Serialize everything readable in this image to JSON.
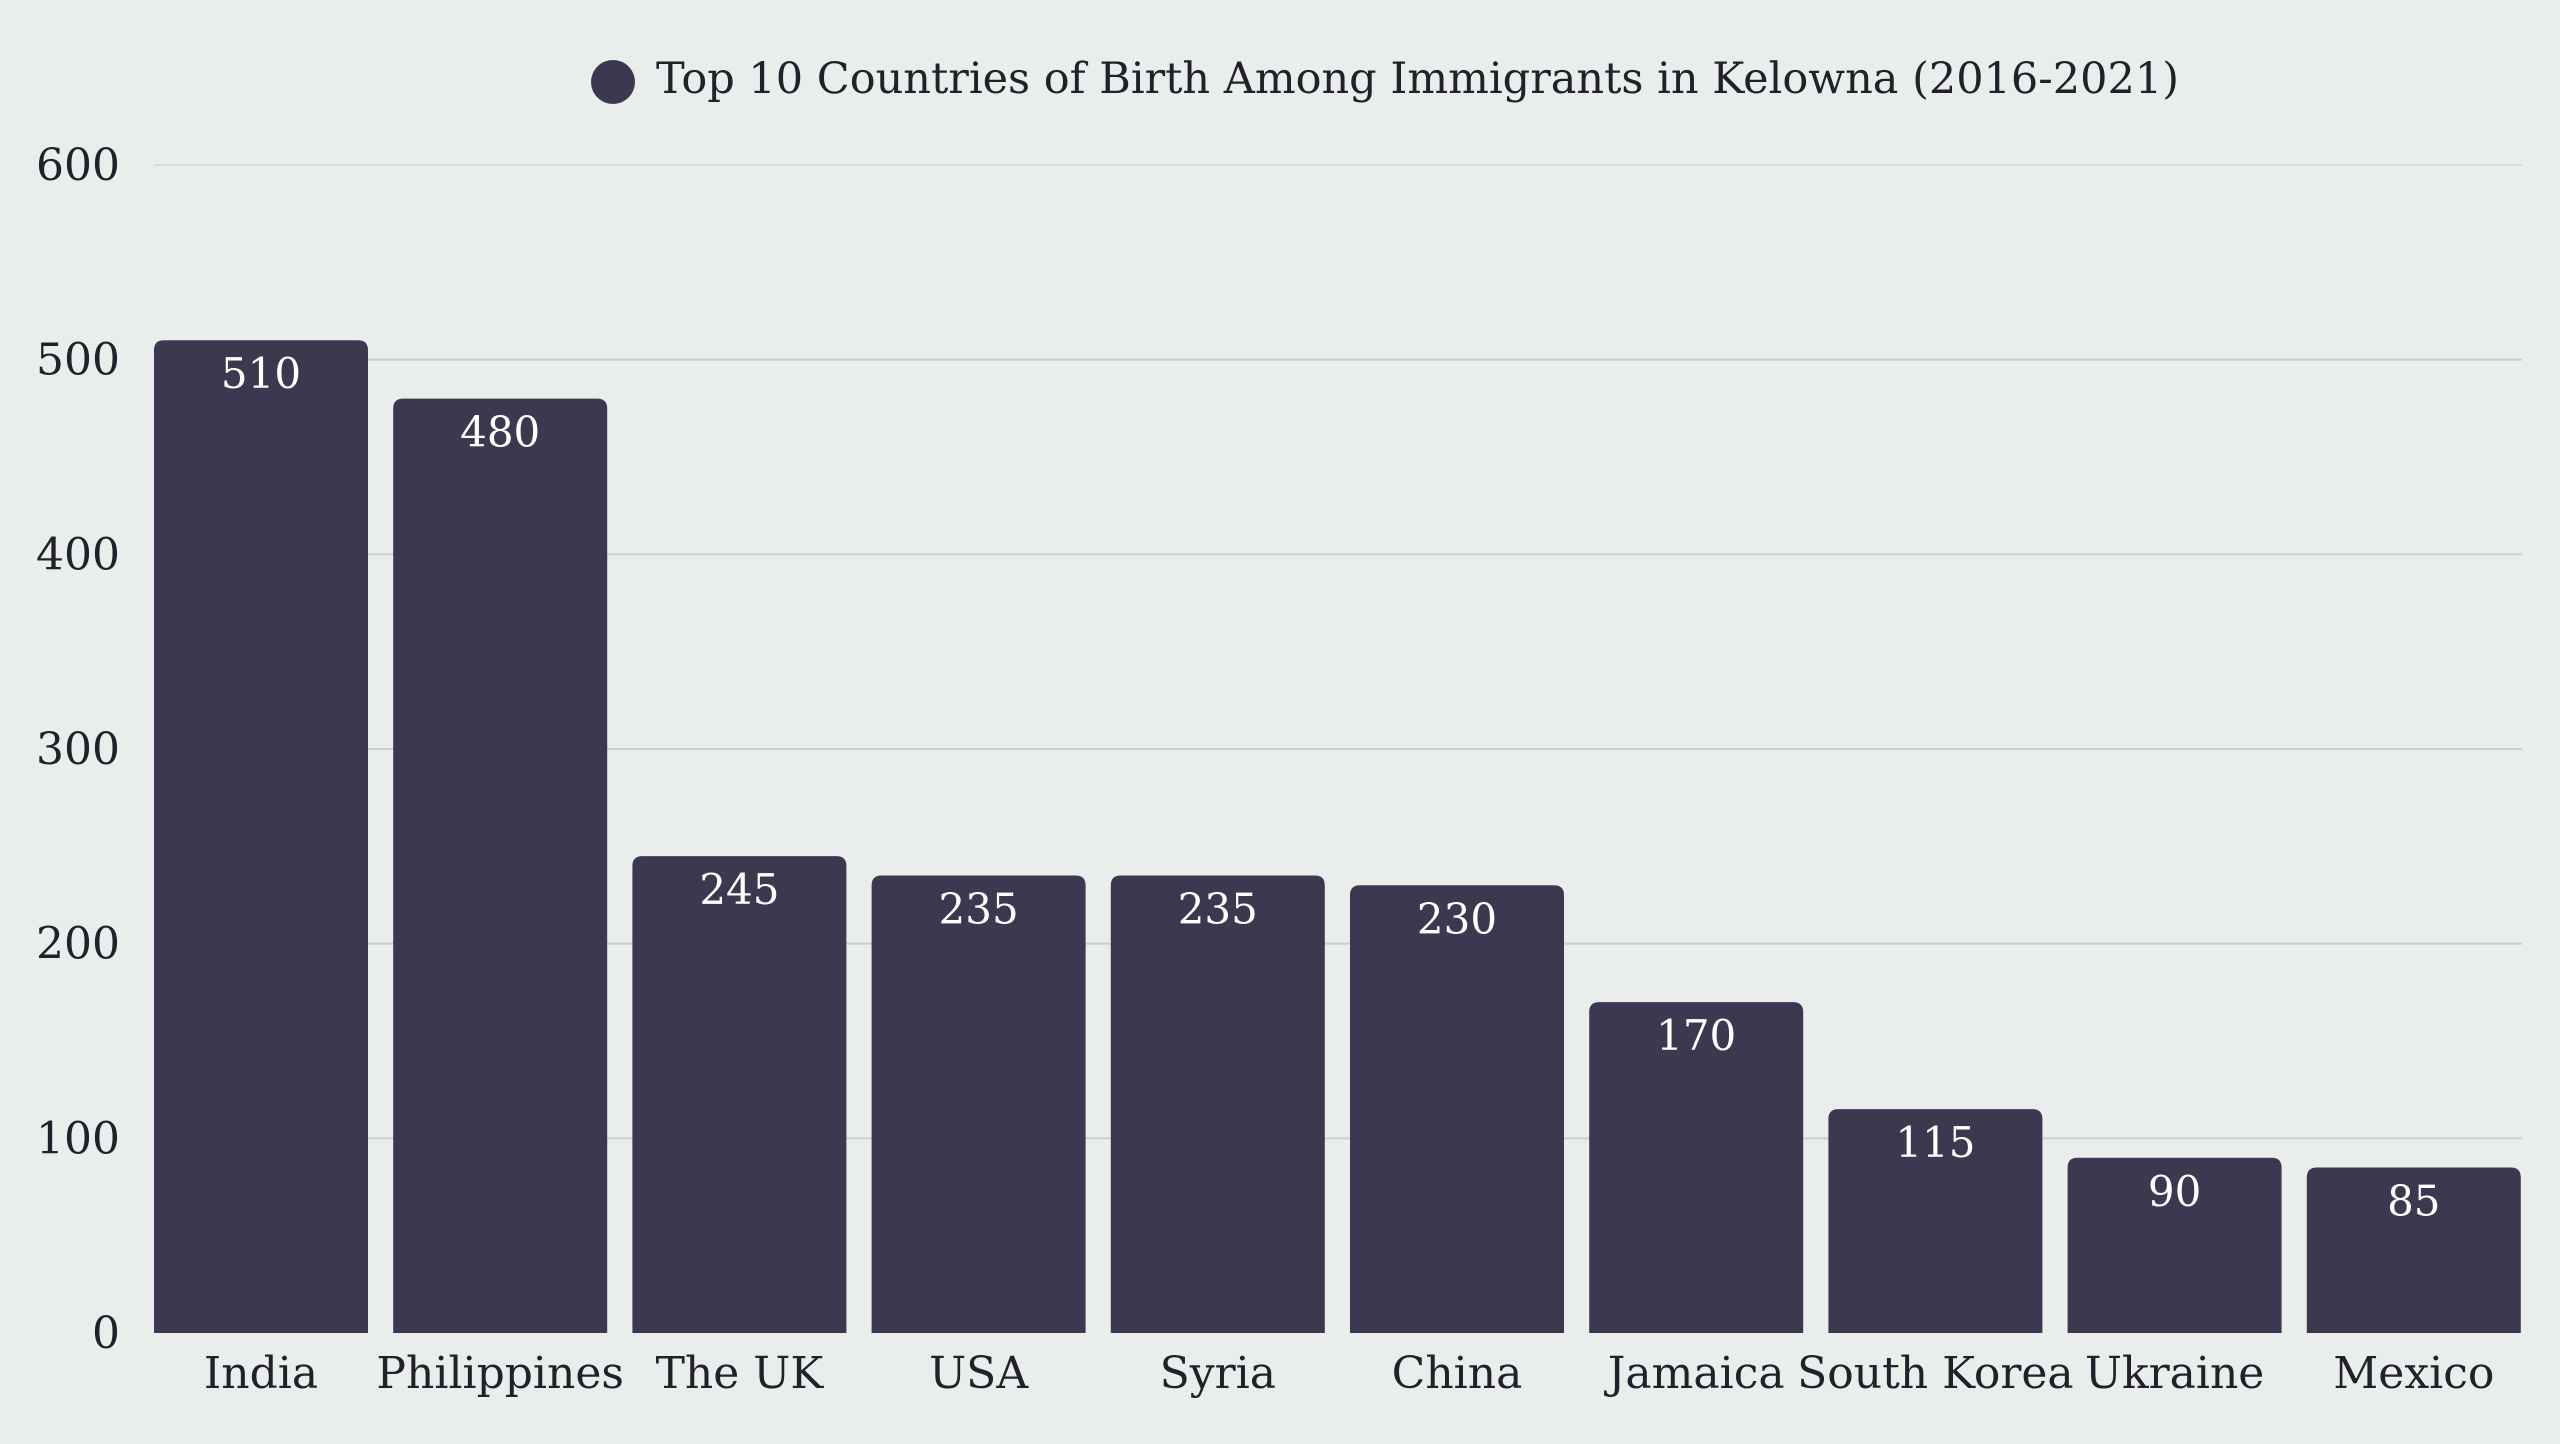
{
  "colors": {
    "background": "#e9eeec",
    "bar": "#3d3850",
    "grid": "#c9cfcd",
    "text": "#22202b",
    "value_label": "#ffffff"
  },
  "chart_data": {
    "type": "bar",
    "title": "",
    "legend": {
      "entries": [
        "Top 10 Countries of Birth Among Immigrants in Kelowna (2016-2021)"
      ],
      "placement": "top-center"
    },
    "categories": [
      "India",
      "Philippines",
      "The UK",
      "USA",
      "Syria",
      "China",
      "Jamaica",
      "South Korea",
      "Ukraine",
      "Mexico"
    ],
    "series": [
      {
        "name": "Top 10 Countries of Birth Among Immigrants in Kelowna (2016-2021)",
        "values": [
          510,
          480,
          245,
          235,
          235,
          230,
          170,
          115,
          90,
          85
        ]
      }
    ],
    "data_labels": [
      "510",
      "480",
      "245",
      "235",
      "235",
      "230",
      "170",
      "115",
      "90",
      "85"
    ],
    "xlabel": "",
    "ylabel": "",
    "ylim": [
      0,
      600
    ],
    "y_ticks": [
      0,
      100,
      200,
      300,
      400,
      500,
      600
    ],
    "y_tick_labels": [
      "0",
      "100",
      "200",
      "300",
      "400",
      "500",
      "600"
    ],
    "grid": true
  }
}
